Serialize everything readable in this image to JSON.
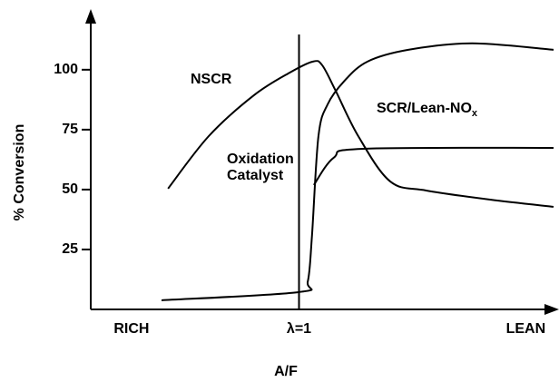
{
  "chart_data": {
    "type": "line",
    "ylabel": "% Conversion",
    "xlabel": "A/F",
    "xlim": [
      0,
      100
    ],
    "ylim": [
      0,
      120
    ],
    "yticks": [
      25,
      50,
      75,
      100
    ],
    "xticks": [
      {
        "value": 8.8,
        "label": "RICH"
      },
      {
        "value": 45,
        "label": "λ=1"
      },
      {
        "value": 94,
        "label": "LEAN"
      }
    ],
    "series": [
      {
        "name": "NSCR",
        "color": "#000000",
        "x": [
          16.7,
          25.5,
          35.3,
          43.1,
          48,
          50,
          52.9,
          57.8,
          64.7,
          72.5,
          86.3,
          100
        ],
        "values": [
          50.4,
          72.3,
          89.4,
          98.9,
          103.4,
          101.9,
          91.3,
          72.3,
          53.4,
          49.6,
          45.8,
          42.8
        ]
      },
      {
        "name": "SCR/Lean-NO",
        "name_subscript": "x",
        "color": "#000000",
        "x": [
          15.3,
          44.9,
          46.9,
          47.8,
          49.2,
          51.2,
          54.7,
          59.8,
          68.6,
          82.4,
          100
        ],
        "values": [
          3.8,
          7.2,
          11.7,
          30.7,
          72.3,
          85.6,
          95.1,
          103.4,
          108.3,
          111,
          108.3
        ]
      },
      {
        "name_lines": [
          "Oxidation",
          "Catalyst"
        ],
        "color": "#000000",
        "x": [
          48.2,
          52.5,
          58.8,
          100
        ],
        "values": [
          51.9,
          63.3,
          67,
          67.4
        ]
      }
    ]
  }
}
